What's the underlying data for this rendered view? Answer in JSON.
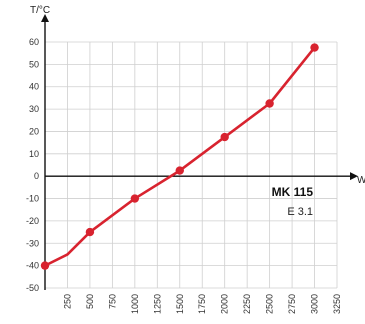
{
  "chart_data": {
    "type": "line",
    "title": "",
    "ylabel": "T/°C",
    "xlabel": "W",
    "x_ticks": [
      250,
      500,
      750,
      1000,
      1250,
      1500,
      1750,
      2000,
      2250,
      2500,
      2750,
      3000,
      3250
    ],
    "y_ticks": [
      -50,
      -40,
      -30,
      -20,
      -10,
      0,
      10,
      20,
      30,
      40,
      50,
      60
    ],
    "xlim": [
      0,
      3250
    ],
    "ylim": [
      -50,
      60
    ],
    "grid": true,
    "color": "#d8232f",
    "series": [
      {
        "x": [
          0,
          250,
          500,
          1000,
          1500,
          2000,
          2500,
          3000
        ],
        "y": [
          -40,
          -35,
          -25,
          -10,
          2.5,
          17.5,
          32.5,
          57.5
        ]
      }
    ],
    "annotations": [
      {
        "text": "MK 115",
        "style": "bold"
      },
      {
        "text": "E 3.1",
        "style": "normal"
      }
    ]
  }
}
